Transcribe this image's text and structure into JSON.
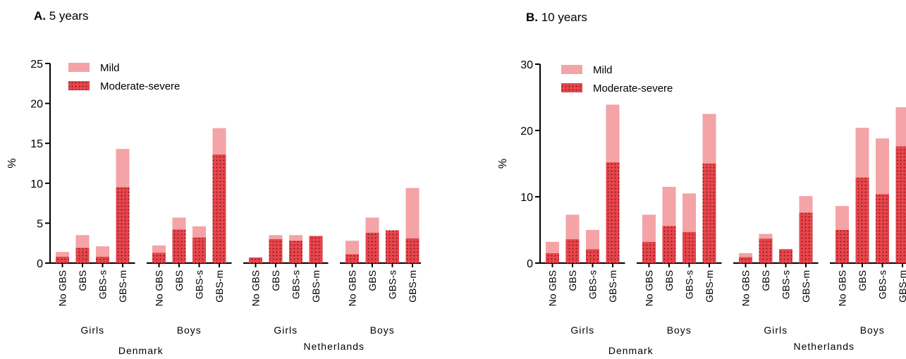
{
  "colors": {
    "mild": "#f4a3a6",
    "moderate_severe": "#e8444b",
    "moderate_severe_dots": "#5a1416",
    "axis": "#000000"
  },
  "legend": {
    "mild": "Mild",
    "moderate_severe": "Moderate-severe"
  },
  "chart_data": [
    {
      "type": "bar",
      "stacked": true,
      "panel_letter": "A.",
      "panel_title": "5 years",
      "ylabel": "%",
      "ylim": [
        0,
        25
      ],
      "yticks": [
        0,
        5,
        10,
        15,
        20,
        25
      ],
      "legend_position": "top-left",
      "categories": [
        "No GBS",
        "GBS",
        "GBS-s",
        "GBS-m"
      ],
      "groups": [
        {
          "sex": "Girls",
          "country": "Denmark",
          "moderate_severe": [
            0.8,
            1.9,
            0.8,
            9.5
          ],
          "total": [
            1.4,
            3.5,
            2.1,
            14.3
          ]
        },
        {
          "sex": "Boys",
          "country": "Denmark",
          "moderate_severe": [
            1.3,
            4.2,
            3.2,
            13.6
          ],
          "total": [
            2.2,
            5.7,
            4.6,
            16.9
          ]
        },
        {
          "sex": "Girls",
          "country": "Netherlands",
          "moderate_severe": [
            0.7,
            3.0,
            2.8,
            3.4
          ],
          "total": [
            0.7,
            3.5,
            3.5,
            3.4
          ]
        },
        {
          "sex": "Boys",
          "country": "Netherlands",
          "moderate_severe": [
            1.1,
            3.8,
            4.1,
            3.1
          ],
          "total": [
            2.8,
            5.7,
            4.1,
            9.4
          ]
        }
      ],
      "countries": [
        "Denmark",
        "Netherlands"
      ]
    },
    {
      "type": "bar",
      "stacked": true,
      "panel_letter": "B.",
      "panel_title": "10 years",
      "ylabel": "%",
      "ylim": [
        0,
        30
      ],
      "yticks": [
        0,
        10,
        20,
        30
      ],
      "legend_position": "top-left",
      "categories": [
        "No GBS",
        "GBS",
        "GBS-s",
        "GBS-m"
      ],
      "groups": [
        {
          "sex": "Girls",
          "country": "Denmark",
          "moderate_severe": [
            1.5,
            3.6,
            2.1,
            15.2
          ],
          "total": [
            3.2,
            7.3,
            5.0,
            23.9
          ]
        },
        {
          "sex": "Boys",
          "country": "Denmark",
          "moderate_severe": [
            3.2,
            5.6,
            4.7,
            15.0
          ],
          "total": [
            7.3,
            11.5,
            10.5,
            22.5
          ]
        },
        {
          "sex": "Girls",
          "country": "Netherlands",
          "moderate_severe": [
            0.9,
            3.7,
            2.1,
            7.6
          ],
          "total": [
            1.5,
            4.4,
            2.1,
            10.1
          ]
        },
        {
          "sex": "Boys",
          "country": "Netherlands",
          "moderate_severe": [
            5.0,
            12.9,
            10.4,
            17.6
          ],
          "total": [
            8.6,
            20.4,
            18.8,
            23.5
          ]
        }
      ],
      "countries": [
        "Denmark",
        "Netherlands"
      ]
    }
  ]
}
